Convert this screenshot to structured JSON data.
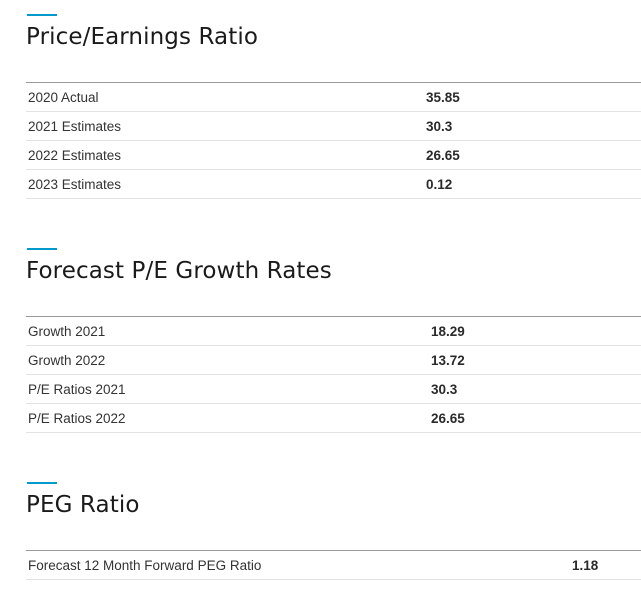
{
  "sections": [
    {
      "title": "Price/Earnings Ratio",
      "rows": [
        {
          "label": "2020 Actual",
          "value": "35.85"
        },
        {
          "label": "2021 Estimates",
          "value": "30.3"
        },
        {
          "label": "2022 Estimates",
          "value": "26.65"
        },
        {
          "label": "2023 Estimates",
          "value": "0.12"
        }
      ]
    },
    {
      "title": "Forecast P/E Growth Rates",
      "rows": [
        {
          "label": "Growth 2021",
          "value": "18.29"
        },
        {
          "label": "Growth 2022",
          "value": "13.72"
        },
        {
          "label": "P/E Ratios 2021",
          "value": "30.3"
        },
        {
          "label": "P/E Ratios 2022",
          "value": "26.65"
        }
      ]
    },
    {
      "title": "PEG Ratio",
      "rows": [
        {
          "label": "Forecast 12 Month Forward PEG Ratio",
          "value": "1.18"
        }
      ]
    }
  ],
  "colors": {
    "accent": "#0099cc",
    "divider": "#9a9a9a",
    "row_border": "#e2e2e2"
  }
}
